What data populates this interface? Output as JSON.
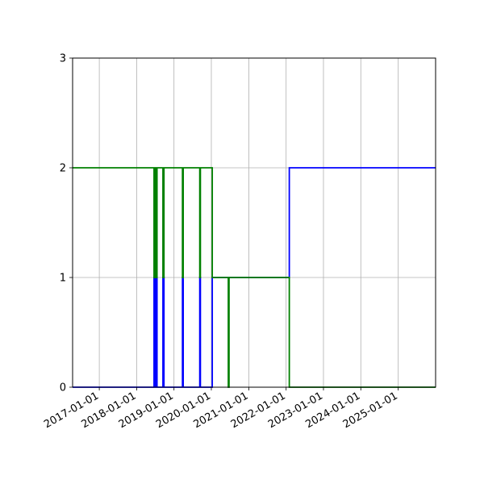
{
  "chart_data": {
    "type": "line",
    "title": "",
    "xlabel": "",
    "ylabel": "",
    "grid": true,
    "x_tick_labels": [
      "2017-01-01",
      "2018-01-01",
      "2019-01-01",
      "2020-01-01",
      "2021-01-01",
      "2022-01-01",
      "2023-01-01",
      "2024-01-01",
      "2025-01-01"
    ],
    "y_tick_labels": [
      "0",
      "1",
      "2",
      "3"
    ],
    "y_ticks": [
      0,
      1,
      2,
      3
    ],
    "xlim": [
      "2016-04-15",
      "2026-01-01"
    ],
    "ylim": [
      0,
      3
    ],
    "step": "post",
    "series": [
      {
        "color": "#0000ff",
        "points": [
          [
            "2016-04-15",
            0
          ],
          [
            "2018-06-20",
            1
          ],
          [
            "2018-06-27",
            0
          ],
          [
            "2018-07-05",
            1
          ],
          [
            "2018-07-09",
            0
          ],
          [
            "2018-07-14",
            1
          ],
          [
            "2018-07-19",
            0
          ],
          [
            "2018-09-15",
            1
          ],
          [
            "2018-09-25",
            0
          ],
          [
            "2019-03-25",
            1
          ],
          [
            "2019-04-01",
            0
          ],
          [
            "2019-09-10",
            1
          ],
          [
            "2019-09-16",
            0
          ],
          [
            "2020-01-10",
            1
          ],
          [
            "2022-02-01",
            2
          ],
          [
            "2026-01-01",
            2
          ]
        ]
      },
      {
        "color": "#008000",
        "points": [
          [
            "2016-04-15",
            2
          ],
          [
            "2018-06-20",
            1
          ],
          [
            "2018-06-27",
            2
          ],
          [
            "2018-07-05",
            1
          ],
          [
            "2018-07-09",
            2
          ],
          [
            "2018-07-14",
            1
          ],
          [
            "2018-07-19",
            2
          ],
          [
            "2018-09-15",
            1
          ],
          [
            "2018-09-25",
            2
          ],
          [
            "2019-03-25",
            1
          ],
          [
            "2019-04-01",
            2
          ],
          [
            "2019-09-10",
            1
          ],
          [
            "2019-09-16",
            2
          ],
          [
            "2020-01-10",
            1
          ],
          [
            "2020-06-15",
            0
          ],
          [
            "2020-06-22",
            1
          ],
          [
            "2022-02-01",
            0
          ],
          [
            "2026-01-01",
            0
          ]
        ]
      }
    ]
  }
}
